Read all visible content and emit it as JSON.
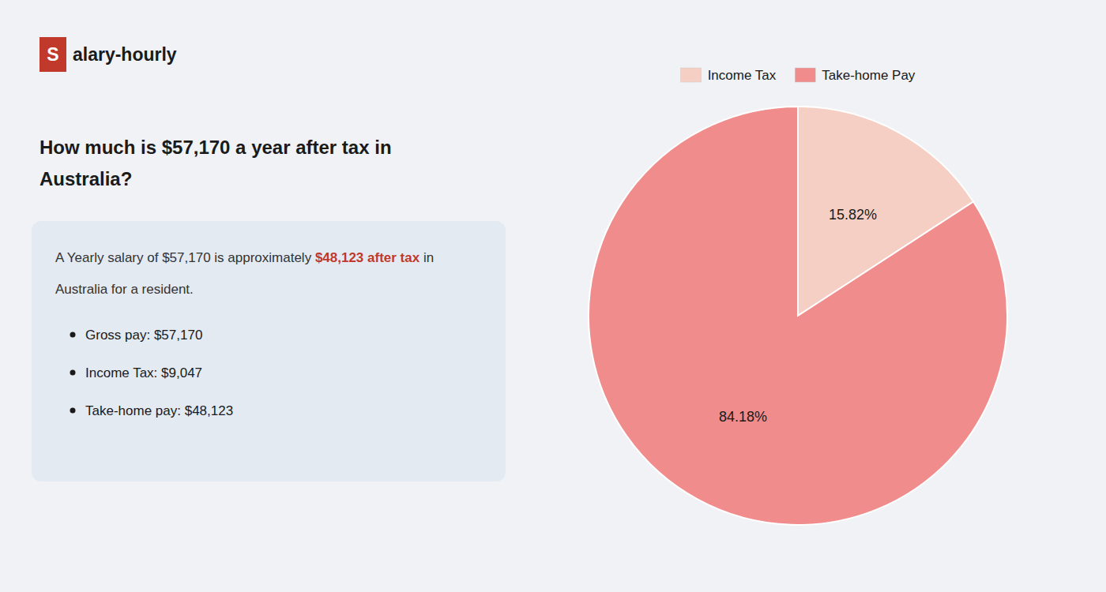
{
  "chart_data": {
    "type": "pie",
    "title": "How much is $57,170 a year after tax in\nAustralia?",
    "annotations": [
      "S",
      "alary-hourly",
      "A Yearly salary of $57,170 is approximately ",
      "$48,123 after tax",
      " in",
      "Australia for a resident.",
      "Gross pay: $57,170",
      "Income Tax: $9,047",
      "Take-home pay: $48,123"
    ],
    "categories": [
      "Income Tax",
      "Take-home Pay"
    ],
    "values": [
      15.82,
      84.18
    ],
    "value_labels": [
      "15.82%",
      "84.18%"
    ],
    "colors": [
      "#f5cfc4",
      "#f08c8c"
    ],
    "data_labels": true,
    "legend": "top"
  }
}
